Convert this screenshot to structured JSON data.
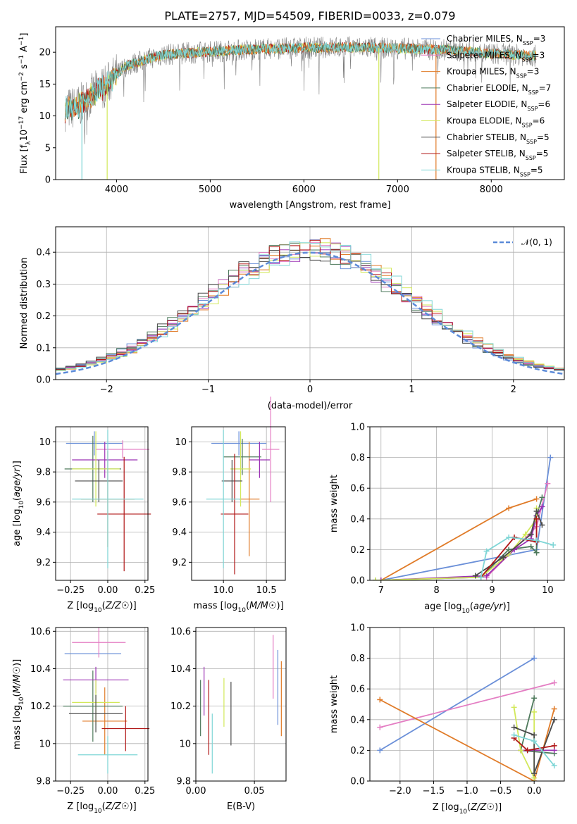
{
  "title": "PLATE=2757, MJD=54509, FIBERID=0033, z=0.079",
  "colors": {
    "Chabrier MILES": "#6a8fd8",
    "Salpeter MILES": "#e47dc3",
    "Kroupa MILES": "#e07b28",
    "Chabrier ELODIE": "#4e7a5c",
    "Salpeter ELODIE": "#9b30b3",
    "Kroupa ELODIE": "#d2e85a",
    "Chabrier STELIB": "#4a4a4a",
    "Salpeter STELIB": "#b01515",
    "Kroupa STELIB": "#7fd6d6"
  },
  "legend": {
    "entries": [
      {
        "pre": "Chabrier MILES, N",
        "sub": "SSP",
        "post": "=3",
        "series": "Chabrier MILES"
      },
      {
        "pre": "Salpeter MILES, N",
        "sub": "SSP",
        "post": "=3",
        "series": "Salpeter MILES"
      },
      {
        "pre": "Kroupa MILES, N",
        "sub": "SSP",
        "post": "=3",
        "series": "Kroupa MILES"
      },
      {
        "pre": "Chabrier ELODIE, N",
        "sub": "SSP",
        "post": "=7",
        "series": "Chabrier ELODIE"
      },
      {
        "pre": "Salpeter ELODIE, N",
        "sub": "SSP",
        "post": "=6",
        "series": "Salpeter ELODIE"
      },
      {
        "pre": "Kroupa ELODIE, N",
        "sub": "SSP",
        "post": "=6",
        "series": "Kroupa ELODIE"
      },
      {
        "pre": "Chabrier STELIB, N",
        "sub": "SSP",
        "post": "=5",
        "series": "Chabrier STELIB"
      },
      {
        "pre": "Salpeter STELIB, N",
        "sub": "SSP",
        "post": "=5",
        "series": "Salpeter STELIB"
      },
      {
        "pre": "Kroupa STELIB, N",
        "sub": "SSP",
        "post": "=5",
        "series": "Kroupa STELIB"
      }
    ],
    "normal_label": "𝒩(0, 1)"
  },
  "chart_data": [
    {
      "id": "spectrum",
      "type": "line",
      "xlabel": "wavelength [Angstrom, rest frame]",
      "ylabel": "Flux [f_λ10^-17 erg cm^-2 s^-1 A^-1]",
      "xlim": [
        3350,
        8780
      ],
      "ylim": [
        0,
        24
      ],
      "xticks": [
        4000,
        5000,
        6000,
        7000,
        8000
      ],
      "yticks": [
        0,
        5,
        10,
        15,
        20
      ],
      "continuum": [
        [
          3450,
          11
        ],
        [
          3600,
          11.5
        ],
        [
          3700,
          12.8
        ],
        [
          3800,
          14
        ],
        [
          3900,
          15
        ],
        [
          4000,
          16.5
        ],
        [
          4100,
          17.8
        ],
        [
          4300,
          18.8
        ],
        [
          4500,
          19.6
        ],
        [
          5000,
          20.1
        ],
        [
          5500,
          20.5
        ],
        [
          6000,
          20.7
        ],
        [
          6500,
          20.8
        ],
        [
          7000,
          20.6
        ],
        [
          7500,
          20.4
        ],
        [
          8000,
          19.8
        ],
        [
          8500,
          19.4
        ]
      ]
    },
    {
      "id": "residuals",
      "type": "bar",
      "xlabel": "(data-model)/error",
      "ylabel": "Normed distribution",
      "xlim": [
        -2.5,
        2.5
      ],
      "ylim": [
        0,
        0.48
      ],
      "xticks": [
        -2,
        -1,
        0,
        1,
        2
      ],
      "yticks": [
        0.0,
        0.1,
        0.2,
        0.3,
        0.4
      ],
      "bin_width": 0.1,
      "normal_mean": 0,
      "normal_sigma": 1
    },
    {
      "id": "z-age",
      "type": "scatter",
      "xlabel": "Z [log10(Z/Z☉)]",
      "ylabel": "age  [log10(age/yr)]",
      "xlim": [
        -0.35,
        0.27
      ],
      "ylim": [
        9.08,
        10.1
      ],
      "xticks": [
        -0.25,
        0.0,
        0.25
      ],
      "xticklabels": [
        "−0.25",
        "0.00",
        "0.25"
      ],
      "yticks": [
        9.2,
        9.4,
        9.6,
        9.8,
        10.0
      ],
      "points": [
        {
          "series": "Chabrier MILES",
          "x": -0.09,
          "y": 9.99,
          "xerr": 0.19,
          "yerr": 0.08
        },
        {
          "series": "Salpeter MILES",
          "x": 0.1,
          "y": 9.95,
          "xerr": 0.18,
          "yerr": 0.06
        },
        {
          "series": "Kroupa MILES",
          "x": 0.0,
          "y": 9.62,
          "xerr": 0.18,
          "yerr": 0.32
        },
        {
          "series": "Chabrier ELODIE",
          "x": -0.1,
          "y": 9.82,
          "xerr": 0.19,
          "yerr": 0.22
        },
        {
          "series": "Salpeter ELODIE",
          "x": -0.02,
          "y": 9.88,
          "xerr": 0.22,
          "yerr": 0.12
        },
        {
          "series": "Kroupa ELODIE",
          "x": -0.08,
          "y": 9.82,
          "xerr": 0.16,
          "yerr": 0.25
        },
        {
          "series": "Chabrier STELIB",
          "x": -0.06,
          "y": 9.74,
          "xerr": 0.16,
          "yerr": 0.14
        },
        {
          "series": "Salpeter STELIB",
          "x": 0.11,
          "y": 9.52,
          "xerr": 0.18,
          "yerr": 0.38
        },
        {
          "series": "Kroupa STELIB",
          "x": 0.0,
          "y": 9.62,
          "xerr": 0.24,
          "yerr": 0.46
        }
      ]
    },
    {
      "id": "mass-age",
      "type": "scatter",
      "xlabel": "mass [log10(M/M☉)]",
      "ylabel": "",
      "xlim": [
        9.63,
        10.72
      ],
      "ylim": [
        9.08,
        10.1
      ],
      "xticks": [
        10.0,
        10.5
      ],
      "xticklabels": [
        "10.0",
        "10.5"
      ],
      "yticks": [
        9.2,
        9.4,
        9.6,
        9.8,
        10.0
      ],
      "points": [
        {
          "series": "Chabrier MILES",
          "x": 10.18,
          "y": 9.99,
          "xerr": 0.32,
          "yerr": 0.08
        },
        {
          "series": "Salpeter MILES",
          "x": 10.55,
          "y": 9.95,
          "xerr": 0.1,
          "yerr": 0.35
        },
        {
          "series": "Kroupa MILES",
          "x": 10.3,
          "y": 9.62,
          "xerr": 0.12,
          "yerr": 0.38
        },
        {
          "series": "Chabrier ELODIE",
          "x": 10.22,
          "y": 9.9,
          "xerr": 0.22,
          "yerr": 0.12
        },
        {
          "series": "Salpeter ELODIE",
          "x": 10.42,
          "y": 9.88,
          "xerr": 0.12,
          "yerr": 0.12
        },
        {
          "series": "Kroupa ELODIE",
          "x": 10.2,
          "y": 9.82,
          "xerr": 0.12,
          "yerr": 0.25
        },
        {
          "series": "Chabrier STELIB",
          "x": 10.1,
          "y": 9.74,
          "xerr": 0.12,
          "yerr": 0.14
        },
        {
          "series": "Salpeter STELIB",
          "x": 10.13,
          "y": 9.52,
          "xerr": 0.16,
          "yerr": 0.4
        },
        {
          "series": "Kroupa STELIB",
          "x": 10.0,
          "y": 9.62,
          "xerr": 0.2,
          "yerr": 0.46
        }
      ]
    },
    {
      "id": "age-weight",
      "type": "line",
      "xlabel": "age  [log10(age/yr)]",
      "ylabel": "mass weight",
      "xlim": [
        6.8,
        10.3
      ],
      "ylim": [
        0.0,
        1.0
      ],
      "xticks": [
        7,
        8,
        9,
        10
      ],
      "yticks": [
        0.0,
        0.2,
        0.4,
        0.6,
        0.8,
        1.0
      ],
      "series": [
        {
          "name": "Chabrier MILES",
          "points": [
            [
              7.0,
              0.0
            ],
            [
              9.8,
              0.2
            ],
            [
              10.05,
              0.8
            ]
          ]
        },
        {
          "name": "Salpeter MILES",
          "points": [
            [
              8.9,
              0.02
            ],
            [
              9.8,
              0.35
            ],
            [
              10.0,
              0.63
            ]
          ]
        },
        {
          "name": "Kroupa MILES",
          "points": [
            [
              7.0,
              0.0
            ],
            [
              9.3,
              0.47
            ],
            [
              9.8,
              0.53
            ]
          ]
        },
        {
          "name": "Chabrier ELODIE",
          "points": [
            [
              6.9,
              0.0
            ],
            [
              8.8,
              0.02
            ],
            [
              9.3,
              0.2
            ],
            [
              9.7,
              0.22
            ],
            [
              9.8,
              0.18
            ],
            [
              9.8,
              0.42
            ],
            [
              9.9,
              0.54
            ]
          ]
        },
        {
          "name": "Salpeter ELODIE",
          "points": [
            [
              7.0,
              0.0
            ],
            [
              8.9,
              0.03
            ],
            [
              9.4,
              0.2
            ],
            [
              9.7,
              0.27
            ],
            [
              9.8,
              0.42
            ],
            [
              9.9,
              0.48
            ]
          ]
        },
        {
          "name": "Kroupa ELODIE",
          "points": [
            [
              6.9,
              0.0
            ],
            [
              8.8,
              0.02
            ],
            [
              9.3,
              0.17
            ],
            [
              9.6,
              0.3
            ],
            [
              9.8,
              0.4
            ],
            [
              9.8,
              0.47
            ]
          ]
        },
        {
          "name": "Chabrier STELIB",
          "points": [
            [
              8.7,
              0.03
            ],
            [
              9.2,
              0.15
            ],
            [
              9.7,
              0.3
            ],
            [
              9.8,
              0.45
            ],
            [
              9.9,
              0.36
            ]
          ]
        },
        {
          "name": "Salpeter STELIB",
          "points": [
            [
              8.8,
              0.02
            ],
            [
              9.4,
              0.28
            ],
            [
              9.8,
              0.25
            ],
            [
              9.8,
              0.4
            ]
          ]
        },
        {
          "name": "Kroupa STELIB",
          "points": [
            [
              8.8,
              0.02
            ],
            [
              8.9,
              0.19
            ],
            [
              9.3,
              0.28
            ],
            [
              9.8,
              0.26
            ],
            [
              10.1,
              0.23
            ]
          ]
        }
      ]
    },
    {
      "id": "z-mass",
      "type": "scatter",
      "xlabel": "Z [log10(Z/Z☉)]",
      "ylabel": "mass [log10(M/M☉)]",
      "xlim": [
        -0.35,
        0.27
      ],
      "ylim": [
        9.8,
        10.62
      ],
      "xticks": [
        -0.25,
        0.0,
        0.25
      ],
      "xticklabels": [
        "−0.25",
        "0.00",
        "0.25"
      ],
      "yticks": [
        9.8,
        10.0,
        10.2,
        10.4,
        10.6
      ],
      "points": [
        {
          "series": "Chabrier MILES",
          "x": -0.1,
          "y": 10.48,
          "xerr": 0.19,
          "yerr": 0.0
        },
        {
          "series": "Salpeter MILES",
          "x": -0.06,
          "y": 10.54,
          "xerr": 0.18,
          "yerr": 0.08
        },
        {
          "series": "Kroupa MILES",
          "x": -0.02,
          "y": 10.12,
          "xerr": 0.15,
          "yerr": 0.18
        },
        {
          "series": "Chabrier ELODIE",
          "x": -0.1,
          "y": 10.2,
          "xerr": 0.2,
          "yerr": 0.19
        },
        {
          "series": "Salpeter ELODIE",
          "x": -0.08,
          "y": 10.34,
          "xerr": 0.22,
          "yerr": 0.07
        },
        {
          "series": "Kroupa ELODIE",
          "x": -0.08,
          "y": 10.22,
          "xerr": 0.16,
          "yerr": 0.12
        },
        {
          "series": "Chabrier STELIB",
          "x": -0.08,
          "y": 10.16,
          "xerr": 0.18,
          "yerr": 0.1
        },
        {
          "series": "Salpeter STELIB",
          "x": 0.12,
          "y": 10.08,
          "xerr": 0.16,
          "yerr": 0.12
        },
        {
          "series": "Kroupa STELIB",
          "x": 0.0,
          "y": 9.94,
          "xerr": 0.2,
          "yerr": 0.1
        }
      ]
    },
    {
      "id": "ebv-mass",
      "type": "scatter",
      "xlabel": "E(B-V)",
      "ylabel": "",
      "xlim": [
        0.0,
        0.077
      ],
      "ylim": [
        9.8,
        10.62
      ],
      "xticks": [
        0.0,
        0.05
      ],
      "xticklabels": [
        "0.00",
        "0.05"
      ],
      "yticks": [
        9.8,
        10.0,
        10.2,
        10.4,
        10.6
      ],
      "points": [
        {
          "series": "Chabrier MILES",
          "x": 0.07,
          "y": 10.3,
          "yerr": 0.2
        },
        {
          "series": "Salpeter MILES",
          "x": 0.066,
          "y": 10.41,
          "yerr": 0.17
        },
        {
          "series": "Kroupa MILES",
          "x": 0.073,
          "y": 10.24,
          "yerr": 0.2
        },
        {
          "series": "Chabrier ELODIE",
          "x": 0.004,
          "y": 10.19,
          "yerr": 0.15
        },
        {
          "series": "Salpeter ELODIE",
          "x": 0.007,
          "y": 10.28,
          "yerr": 0.13
        },
        {
          "series": "Kroupa ELODIE",
          "x": 0.024,
          "y": 10.22,
          "yerr": 0.13
        },
        {
          "series": "Chabrier STELIB",
          "x": 0.03,
          "y": 10.16,
          "yerr": 0.17
        },
        {
          "series": "Salpeter STELIB",
          "x": 0.011,
          "y": 10.14,
          "yerr": 0.2
        },
        {
          "series": "Kroupa STELIB",
          "x": 0.014,
          "y": 10.0,
          "yerr": 0.16
        }
      ]
    },
    {
      "id": "z-weight",
      "type": "line",
      "xlabel": "Z [log10(Z/Z☉)]",
      "ylabel": "mass weight",
      "xlim": [
        -2.45,
        0.45
      ],
      "ylim": [
        0.0,
        1.0
      ],
      "xticks": [
        -2.0,
        -1.5,
        -1.0,
        -0.5,
        0.0
      ],
      "xticklabels": [
        "−2.0",
        "−1.5",
        "−1.0",
        "−0.5",
        "0.0"
      ],
      "yticks": [
        0.0,
        0.2,
        0.4,
        0.6,
        0.8,
        1.0
      ],
      "series": [
        {
          "name": "Chabrier MILES",
          "points": [
            [
              -2.3,
              0.2
            ],
            [
              0.0,
              0.8
            ]
          ]
        },
        {
          "name": "Salpeter MILES",
          "points": [
            [
              -2.3,
              0.35
            ],
            [
              0.3,
              0.64
            ]
          ]
        },
        {
          "name": "Kroupa MILES",
          "points": [
            [
              -2.3,
              0.53
            ],
            [
              0.0,
              0.0
            ],
            [
              0.3,
              0.47
            ]
          ]
        },
        {
          "name": "Chabrier ELODIE",
          "points": [
            [
              0.0,
              0.54
            ],
            [
              -0.2,
              0.2
            ],
            [
              0.3,
              0.18
            ]
          ]
        },
        {
          "name": "Salpeter ELODIE",
          "points": [
            [
              -0.2,
              0.2
            ],
            [
              0.3,
              0.2
            ]
          ]
        },
        {
          "name": "Kroupa ELODIE",
          "points": [
            [
              -0.3,
              0.48
            ],
            [
              -0.2,
              0.2
            ],
            [
              0.0,
              0.02
            ],
            [
              0.0,
              0.45
            ]
          ]
        },
        {
          "name": "Chabrier STELIB",
          "points": [
            [
              -0.3,
              0.35
            ],
            [
              0.0,
              0.3
            ],
            [
              0.0,
              0.05
            ],
            [
              0.3,
              0.4
            ]
          ]
        },
        {
          "name": "Salpeter STELIB",
          "points": [
            [
              -0.3,
              0.28
            ],
            [
              -0.1,
              0.2
            ],
            [
              0.3,
              0.23
            ]
          ]
        },
        {
          "name": "Kroupa STELIB",
          "points": [
            [
              -0.3,
              0.3
            ],
            [
              0.0,
              0.26
            ],
            [
              0.3,
              0.1
            ]
          ]
        }
      ]
    }
  ]
}
